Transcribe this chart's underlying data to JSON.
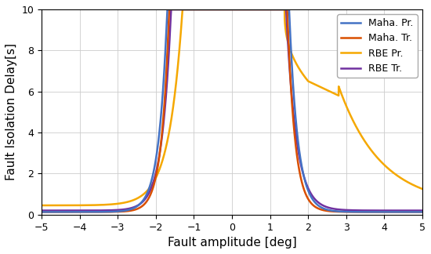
{
  "title": "",
  "xlabel": "Fault amplitude [deg]",
  "ylabel": "Fault Isolation Delay[s]",
  "xlim": [
    -5,
    5
  ],
  "ylim": [
    0,
    10
  ],
  "xticks": [
    -5,
    -4,
    -3,
    -2,
    -1,
    0,
    1,
    2,
    3,
    4,
    5
  ],
  "yticks": [
    0,
    2,
    4,
    6,
    8,
    10
  ],
  "colors": {
    "maha_pr": "#4472C4",
    "maha_tr": "#D94F00",
    "rbe_pr": "#F5A800",
    "rbe_tr": "#7030A0"
  },
  "legend": [
    "Maha. Pr.",
    "Maha. Tr.",
    "RBE Pr.",
    "RBE Tr."
  ],
  "linewidth": 1.8,
  "background_color": "#FFFFFF",
  "grid_color": "#CCCCCC"
}
